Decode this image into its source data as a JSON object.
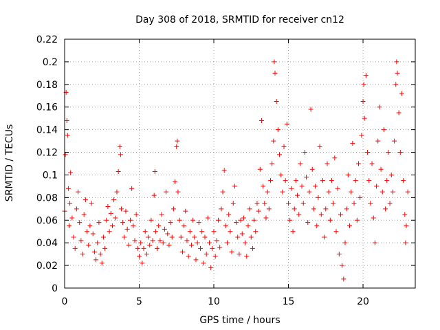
{
  "chart_data": {
    "type": "scatter",
    "title": "Day 308 of 2018, SRMTID for receiver cn12",
    "xlabel": "GPS time / hours",
    "ylabel": "SRMTID / TECUs",
    "xlim": [
      0,
      23.5
    ],
    "ylim": [
      0,
      0.22
    ],
    "grid": true,
    "marker": "+",
    "marker_color": "#ff0000",
    "axis_color": "#000000",
    "grid_color": "#a0a0a0",
    "xticks": [
      0,
      5,
      10,
      15,
      20
    ],
    "xtick_labels": [
      "0",
      "5",
      "10",
      "15",
      "20"
    ],
    "yticks": [
      0,
      0.02,
      0.04,
      0.06,
      0.08,
      0.1,
      0.12,
      0.14,
      0.16,
      0.18,
      0.2,
      0.22
    ],
    "ytick_labels": [
      "0",
      "0.02",
      "0.04",
      "0.06",
      "0.08",
      "0.1",
      "0.12",
      "0.14",
      "0.16",
      "0.18",
      "0.2",
      "0.22"
    ],
    "series": [
      {
        "name": "SRMTID",
        "points": [
          [
            0.0,
            0.068
          ],
          [
            0.05,
            0.118
          ],
          [
            0.1,
            0.173
          ],
          [
            0.15,
            0.148
          ],
          [
            0.2,
            0.135
          ],
          [
            0.25,
            0.088
          ],
          [
            0.3,
            0.055
          ],
          [
            0.35,
            0.075
          ],
          [
            0.4,
            0.102
          ],
          [
            0.5,
            0.062
          ],
          [
            0.6,
            0.045
          ],
          [
            0.7,
            0.035
          ],
          [
            0.8,
            0.07
          ],
          [
            0.9,
            0.085
          ],
          [
            1.0,
            0.058
          ],
          [
            1.1,
            0.042
          ],
          [
            1.2,
            0.03
          ],
          [
            1.3,
            0.065
          ],
          [
            1.4,
            0.078
          ],
          [
            1.5,
            0.05
          ],
          [
            1.6,
            0.038
          ],
          [
            1.7,
            0.055
          ],
          [
            1.8,
            0.075
          ],
          [
            1.9,
            0.048
          ],
          [
            2.0,
            0.032
          ],
          [
            2.1,
            0.025
          ],
          [
            2.2,
            0.04
          ],
          [
            2.3,
            0.058
          ],
          [
            2.4,
            0.03
          ],
          [
            2.5,
            0.022
          ],
          [
            2.6,
            0.045
          ],
          [
            2.7,
            0.035
          ],
          [
            2.8,
            0.06
          ],
          [
            2.9,
            0.072
          ],
          [
            3.0,
            0.05
          ],
          [
            3.1,
            0.066
          ],
          [
            3.2,
            0.055
          ],
          [
            3.3,
            0.078
          ],
          [
            3.4,
            0.062
          ],
          [
            3.5,
            0.085
          ],
          [
            3.6,
            0.103
          ],
          [
            3.7,
            0.125
          ],
          [
            3.75,
            0.118
          ],
          [
            3.8,
            0.07
          ],
          [
            3.9,
            0.058
          ],
          [
            4.0,
            0.045
          ],
          [
            4.1,
            0.068
          ],
          [
            4.2,
            0.052
          ],
          [
            4.3,
            0.038
          ],
          [
            4.4,
            0.06
          ],
          [
            4.5,
            0.088
          ],
          [
            4.6,
            0.055
          ],
          [
            4.7,
            0.042
          ],
          [
            4.8,
            0.065
          ],
          [
            4.9,
            0.035
          ],
          [
            5.0,
            0.028
          ],
          [
            5.1,
            0.04
          ],
          [
            5.2,
            0.022
          ],
          [
            5.3,
            0.035
          ],
          [
            5.4,
            0.05
          ],
          [
            5.5,
            0.03
          ],
          [
            5.6,
            0.045
          ],
          [
            5.7,
            0.038
          ],
          [
            5.8,
            0.06
          ],
          [
            5.9,
            0.042
          ],
          [
            6.0,
            0.082
          ],
          [
            6.05,
            0.103
          ],
          [
            6.1,
            0.05
          ],
          [
            6.2,
            0.035
          ],
          [
            6.3,
            0.055
          ],
          [
            6.4,
            0.042
          ],
          [
            6.5,
            0.065
          ],
          [
            6.6,
            0.04
          ],
          [
            6.7,
            0.052
          ],
          [
            6.8,
            0.085
          ],
          [
            6.9,
            0.048
          ],
          [
            7.0,
            0.038
          ],
          [
            7.1,
            0.058
          ],
          [
            7.2,
            0.045
          ],
          [
            7.3,
            0.07
          ],
          [
            7.4,
            0.094
          ],
          [
            7.5,
            0.125
          ],
          [
            7.55,
            0.13
          ],
          [
            7.6,
            0.085
          ],
          [
            7.7,
            0.06
          ],
          [
            7.8,
            0.045
          ],
          [
            7.9,
            0.032
          ],
          [
            8.0,
            0.055
          ],
          [
            8.1,
            0.068
          ],
          [
            8.2,
            0.042
          ],
          [
            8.3,
            0.028
          ],
          [
            8.4,
            0.05
          ],
          [
            8.5,
            0.038
          ],
          [
            8.6,
            0.06
          ],
          [
            8.7,
            0.045
          ],
          [
            8.8,
            0.025
          ],
          [
            8.9,
            0.04
          ],
          [
            9.0,
            0.058
          ],
          [
            9.1,
            0.035
          ],
          [
            9.2,
            0.05
          ],
          [
            9.3,
            0.022
          ],
          [
            9.4,
            0.045
          ],
          [
            9.5,
            0.03
          ],
          [
            9.6,
            0.062
          ],
          [
            9.7,
            0.04
          ],
          [
            9.8,
            0.018
          ],
          [
            9.9,
            0.035
          ],
          [
            10.0,
            0.05
          ],
          [
            10.1,
            0.028
          ],
          [
            10.2,
            0.042
          ],
          [
            10.3,
            0.06
          ],
          [
            10.4,
            0.036
          ],
          [
            10.5,
            0.07
          ],
          [
            10.6,
            0.085
          ],
          [
            10.7,
            0.104
          ],
          [
            10.8,
            0.055
          ],
          [
            10.9,
            0.04
          ],
          [
            11.0,
            0.065
          ],
          [
            11.1,
            0.05
          ],
          [
            11.2,
            0.032
          ],
          [
            11.3,
            0.075
          ],
          [
            11.4,
            0.09
          ],
          [
            11.5,
            0.058
          ],
          [
            11.6,
            0.045
          ],
          [
            11.7,
            0.03
          ],
          [
            11.8,
            0.06
          ],
          [
            11.9,
            0.048
          ],
          [
            12.0,
            0.062
          ],
          [
            12.1,
            0.04
          ],
          [
            12.2,
            0.028
          ],
          [
            12.3,
            0.055
          ],
          [
            12.4,
            0.07
          ],
          [
            12.5,
            0.045
          ],
          [
            12.6,
            0.035
          ],
          [
            12.7,
            0.06
          ],
          [
            12.8,
            0.05
          ],
          [
            12.9,
            0.075
          ],
          [
            13.0,
            0.068
          ],
          [
            13.1,
            0.105
          ],
          [
            13.2,
            0.148
          ],
          [
            13.3,
            0.09
          ],
          [
            13.4,
            0.075
          ],
          [
            13.5,
            0.062
          ],
          [
            13.6,
            0.085
          ],
          [
            13.7,
            0.07
          ],
          [
            13.8,
            0.095
          ],
          [
            13.9,
            0.11
          ],
          [
            14.0,
            0.13
          ],
          [
            14.05,
            0.2
          ],
          [
            14.1,
            0.19
          ],
          [
            14.2,
            0.165
          ],
          [
            14.3,
            0.14
          ],
          [
            14.4,
            0.118
          ],
          [
            14.5,
            0.1
          ],
          [
            14.6,
            0.085
          ],
          [
            14.7,
            0.125
          ],
          [
            14.8,
            0.095
          ],
          [
            14.9,
            0.145
          ],
          [
            15.0,
            0.075
          ],
          [
            15.1,
            0.06
          ],
          [
            15.2,
            0.088
          ],
          [
            15.3,
            0.05
          ],
          [
            15.4,
            0.07
          ],
          [
            15.5,
            0.095
          ],
          [
            15.6,
            0.082
          ],
          [
            15.7,
            0.065
          ],
          [
            15.8,
            0.11
          ],
          [
            15.9,
            0.09
          ],
          [
            16.0,
            0.075
          ],
          [
            16.1,
            0.12
          ],
          [
            16.2,
            0.098
          ],
          [
            16.3,
            0.058
          ],
          [
            16.4,
            0.085
          ],
          [
            16.5,
            0.158
          ],
          [
            16.6,
            0.105
          ],
          [
            16.7,
            0.07
          ],
          [
            16.8,
            0.09
          ],
          [
            16.9,
            0.055
          ],
          [
            17.0,
            0.08
          ],
          [
            17.1,
            0.125
          ],
          [
            17.2,
            0.065
          ],
          [
            17.3,
            0.095
          ],
          [
            17.4,
            0.045
          ],
          [
            17.5,
            0.07
          ],
          [
            17.6,
            0.11
          ],
          [
            17.7,
            0.085
          ],
          [
            17.8,
            0.06
          ],
          [
            17.9,
            0.095
          ],
          [
            18.0,
            0.075
          ],
          [
            18.1,
            0.115
          ],
          [
            18.2,
            0.05
          ],
          [
            18.3,
            0.088
          ],
          [
            18.4,
            0.03
          ],
          [
            18.5,
            0.065
          ],
          [
            18.6,
            0.02
          ],
          [
            18.7,
            0.008
          ],
          [
            18.8,
            0.04
          ],
          [
            18.9,
            0.07
          ],
          [
            19.0,
            0.1
          ],
          [
            19.1,
            0.055
          ],
          [
            19.2,
            0.085
          ],
          [
            19.3,
            0.128
          ],
          [
            19.4,
            0.075
          ],
          [
            19.5,
            0.095
          ],
          [
            19.6,
            0.06
          ],
          [
            19.7,
            0.11
          ],
          [
            19.8,
            0.08
          ],
          [
            19.9,
            0.135
          ],
          [
            20.0,
            0.165
          ],
          [
            20.05,
            0.18
          ],
          [
            20.1,
            0.15
          ],
          [
            20.2,
            0.188
          ],
          [
            20.3,
            0.12
          ],
          [
            20.4,
            0.095
          ],
          [
            20.5,
            0.075
          ],
          [
            20.6,
            0.11
          ],
          [
            20.7,
            0.062
          ],
          [
            20.8,
            0.04
          ],
          [
            20.9,
            0.09
          ],
          [
            21.0,
            0.13
          ],
          [
            21.1,
            0.16
          ],
          [
            21.2,
            0.105
          ],
          [
            21.3,
            0.085
          ],
          [
            21.4,
            0.14
          ],
          [
            21.5,
            0.07
          ],
          [
            21.6,
            0.095
          ],
          [
            21.7,
            0.12
          ],
          [
            21.8,
            0.075
          ],
          [
            21.9,
            0.1
          ],
          [
            22.0,
            0.085
          ],
          [
            22.1,
            0.13
          ],
          [
            22.2,
            0.18
          ],
          [
            22.25,
            0.2
          ],
          [
            22.3,
            0.19
          ],
          [
            22.4,
            0.155
          ],
          [
            22.5,
            0.12
          ],
          [
            22.6,
            0.172
          ],
          [
            22.7,
            0.095
          ],
          [
            22.8,
            0.065
          ],
          [
            22.85,
            0.04
          ],
          [
            22.9,
            0.055
          ],
          [
            23.0,
            0.085
          ]
        ]
      }
    ]
  }
}
